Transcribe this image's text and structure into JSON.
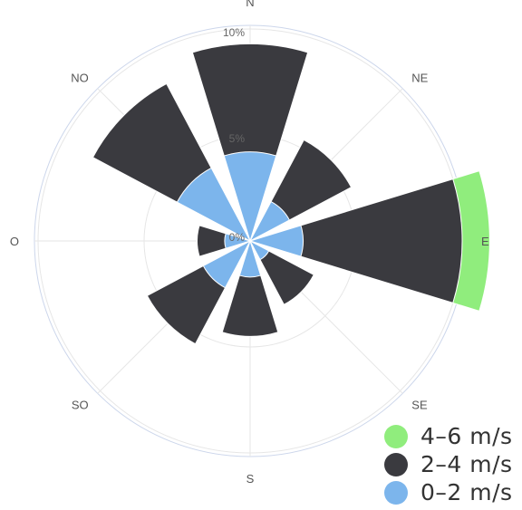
{
  "chart_data": {
    "type": "windrose",
    "directions": [
      "N",
      "NE",
      "E",
      "SE",
      "S",
      "SO",
      "O",
      "NO"
    ],
    "radial_ticks": [
      "0%",
      "5%",
      "10%"
    ],
    "rmax_percent": 10,
    "series": [
      {
        "name": "0-2 m/s",
        "color": "#7cb5ec",
        "values": [
          4.2,
          2.1,
          2.5,
          1.0,
          1.7,
          2.5,
          1.2,
          3.9
        ]
      },
      {
        "name": "2-4 m/s",
        "color": "#3a3a3f",
        "values": [
          5.1,
          3.3,
          7.5,
          2.4,
          2.8,
          3.0,
          1.3,
          4.5
        ]
      },
      {
        "name": "4-6 m/s",
        "color": "#90ed7d",
        "values": [
          0.0,
          0.0,
          1.3,
          0.0,
          0.0,
          0.0,
          0.0,
          0.0
        ]
      }
    ],
    "legend": {
      "position": "bottom-right",
      "items": [
        {
          "label": "4–6 m/s",
          "color": "#90ed7d"
        },
        {
          "label": "2–4 m/s",
          "color": "#3a3a3f"
        },
        {
          "label": "0–2 m/s",
          "color": "#7cb5ec"
        }
      ]
    }
  }
}
